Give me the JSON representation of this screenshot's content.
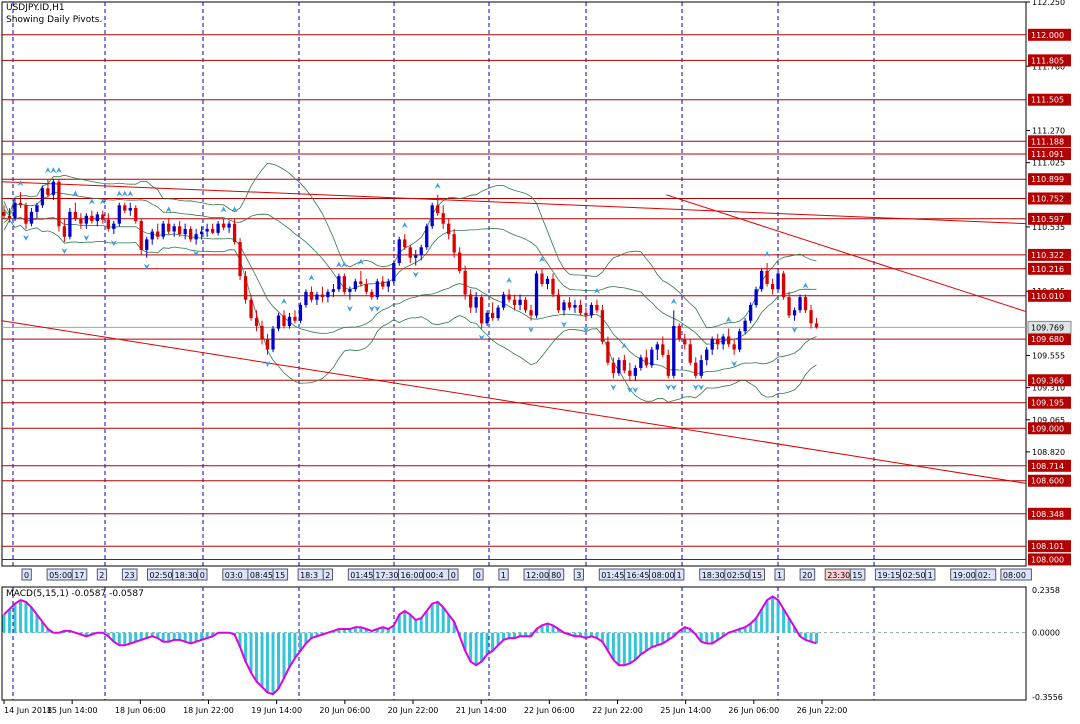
{
  "window": {
    "title": "USDJPY.ID,H1",
    "subtitle": "Showing Daily Pivots."
  },
  "macd": {
    "label": "MACD(5,15,1) -0.0587 -0.0587",
    "axis_ticks": [
      "0.2358",
      "0.0000",
      "-0.3556"
    ]
  },
  "colors": {
    "background": "#ffffff",
    "grid_vertical": "#0000cc",
    "pivot_line": "#b40000",
    "pivot_label_bg": "#b40000",
    "trendline": "#dd0000",
    "bollinger": "#2f7a4a",
    "candle_up": "#0000cc",
    "candle_down": "#dd0000",
    "fractal": "#3aa0e0",
    "macd_hist": "#34c6d8",
    "macd_signal": "#e000e0",
    "time_marker_bg": "#dde4ff",
    "current_marker_bg": "#ffd0d0"
  },
  "chart_data": {
    "type": "candlestick",
    "symbol": "USDJPY.ID",
    "timeframe": "H1",
    "ylim": [
      107.95,
      112.25
    ],
    "price_ticks": [
      "112.250",
      "111.760",
      "111.270",
      "111.025",
      "110.535",
      "110.045",
      "109.555",
      "109.310",
      "109.065",
      "108.820"
    ],
    "pivots": [
      {
        "price": 112.0,
        "label": "112.000"
      },
      {
        "price": 111.805,
        "label": "111.805"
      },
      {
        "price": 111.505,
        "label": "111.505"
      },
      {
        "price": 111.188,
        "label": "111.188"
      },
      {
        "price": 111.091,
        "label": "111.091"
      },
      {
        "price": 110.899,
        "label": "110.899"
      },
      {
        "price": 110.752,
        "label": "110.752"
      },
      {
        "price": 110.597,
        "label": "110.597"
      },
      {
        "price": 110.322,
        "label": "110.322"
      },
      {
        "price": 110.216,
        "label": "110.216"
      },
      {
        "price": 110.01,
        "label": "110.010"
      },
      {
        "price": 109.68,
        "label": "109.680"
      },
      {
        "price": 109.366,
        "label": "109.366"
      },
      {
        "price": 109.195,
        "label": "109.195"
      },
      {
        "price": 109.0,
        "label": "109.000"
      },
      {
        "price": 108.714,
        "label": "108.714"
      },
      {
        "price": 108.6,
        "label": "108.600"
      },
      {
        "price": 108.348,
        "label": "108.348"
      },
      {
        "price": 108.101,
        "label": "108.101"
      },
      {
        "price": 108.0,
        "label": "108.000"
      }
    ],
    "current_price": {
      "price": 109.769,
      "label": "109.769"
    },
    "date_labels": [
      "14 Jun 2018",
      "15 Jun 14:00",
      "18 Jun 06:00",
      "18 Jun 22:00",
      "19 Jun 14:00",
      "20 Jun 06:00",
      "20 Jun 22:00",
      "21 Jun 14:00",
      "22 Jun 06:00",
      "22 Jun 22:00",
      "25 Jun 14:00",
      "26 Jun 06:00",
      "26 Jun 22:00"
    ],
    "time_markers": [
      {
        "label": "0"
      },
      {
        "label": "05:00"
      },
      {
        "label": "17"
      },
      {
        "label": "2"
      },
      {
        "label": "23"
      },
      {
        "label": "02:50"
      },
      {
        "label": "18:30"
      },
      {
        "label": "0"
      },
      {
        "label": "03:0"
      },
      {
        "label": "08:45"
      },
      {
        "label": "15"
      },
      {
        "label": "18:3"
      },
      {
        "label": "2"
      },
      {
        "label": "01:45"
      },
      {
        "label": "17:30"
      },
      {
        "label": "16:00"
      },
      {
        "label": "00:4"
      },
      {
        "label": "0"
      },
      {
        "label": "0"
      },
      {
        "label": "1"
      },
      {
        "label": "12:00"
      },
      {
        "label": "80"
      },
      {
        "label": "3"
      },
      {
        "label": "01:45"
      },
      {
        "label": "16:45"
      },
      {
        "label": "08:00"
      },
      {
        "label": "1"
      },
      {
        "label": "18:30"
      },
      {
        "label": "02:50"
      },
      {
        "label": "15"
      },
      {
        "label": "1"
      },
      {
        "label": "20"
      },
      {
        "label": "23:30"
      },
      {
        "label": "15"
      },
      {
        "label": "19:15"
      },
      {
        "label": "02:50"
      },
      {
        "label": "1"
      },
      {
        "label": "19:00"
      },
      {
        "label": "02:"
      },
      {
        "label": "08:00"
      }
    ],
    "candles": [
      [
        110.65,
        110.7,
        110.6,
        110.62
      ],
      [
        110.62,
        110.68,
        110.57,
        110.6
      ],
      [
        110.6,
        110.75,
        110.58,
        110.72
      ],
      [
        110.72,
        110.8,
        110.68,
        110.7
      ],
      [
        110.7,
        110.72,
        110.52,
        110.56
      ],
      [
        110.56,
        110.68,
        110.54,
        110.65
      ],
      [
        110.65,
        110.72,
        110.6,
        110.7
      ],
      [
        110.7,
        110.85,
        110.68,
        110.83
      ],
      [
        110.83,
        110.9,
        110.76,
        110.78
      ],
      [
        110.78,
        110.9,
        110.74,
        110.88
      ],
      [
        110.88,
        110.9,
        110.5,
        110.54
      ],
      [
        110.54,
        110.6,
        110.42,
        110.46
      ],
      [
        110.46,
        110.68,
        110.44,
        110.65
      ],
      [
        110.65,
        110.72,
        110.58,
        110.6
      ],
      [
        110.6,
        110.64,
        110.52,
        110.56
      ],
      [
        110.56,
        110.64,
        110.52,
        110.62
      ],
      [
        110.62,
        110.66,
        110.56,
        110.58
      ],
      [
        110.58,
        110.65,
        110.54,
        110.63
      ],
      [
        110.63,
        110.66,
        110.56,
        110.59
      ],
      [
        110.59,
        110.64,
        110.5,
        110.52
      ],
      [
        110.52,
        110.58,
        110.48,
        110.56
      ],
      [
        110.56,
        110.72,
        110.54,
        110.7
      ],
      [
        110.7,
        110.72,
        110.64,
        110.66
      ],
      [
        110.66,
        110.72,
        110.62,
        110.68
      ],
      [
        110.68,
        110.7,
        110.56,
        110.58
      ],
      [
        110.58,
        110.6,
        110.32,
        110.36
      ],
      [
        110.36,
        110.46,
        110.3,
        110.44
      ],
      [
        110.44,
        110.52,
        110.4,
        110.5
      ],
      [
        110.5,
        110.56,
        110.44,
        110.46
      ],
      [
        110.46,
        110.58,
        110.44,
        110.56
      ],
      [
        110.56,
        110.6,
        110.48,
        110.5
      ],
      [
        110.5,
        110.56,
        110.46,
        110.54
      ],
      [
        110.54,
        110.58,
        110.46,
        110.48
      ],
      [
        110.48,
        110.56,
        110.44,
        110.52
      ],
      [
        110.52,
        110.54,
        110.42,
        110.44
      ],
      [
        110.44,
        110.52,
        110.4,
        110.48
      ],
      [
        110.48,
        110.54,
        110.44,
        110.5
      ],
      [
        110.5,
        110.56,
        110.46,
        110.52
      ],
      [
        110.52,
        110.56,
        110.48,
        110.49
      ],
      [
        110.49,
        110.58,
        110.47,
        110.56
      ],
      [
        110.56,
        110.6,
        110.51,
        110.53
      ],
      [
        110.53,
        110.58,
        110.49,
        110.56
      ],
      [
        110.56,
        110.6,
        110.4,
        110.42
      ],
      [
        110.42,
        110.45,
        110.13,
        110.16
      ],
      [
        110.16,
        110.2,
        109.95,
        109.98
      ],
      [
        109.98,
        110.02,
        109.82,
        109.84
      ],
      [
        109.84,
        109.9,
        109.74,
        109.78
      ],
      [
        109.78,
        109.82,
        109.64,
        109.68
      ],
      [
        109.68,
        109.72,
        109.56,
        109.6
      ],
      [
        109.6,
        109.78,
        109.58,
        109.76
      ],
      [
        109.76,
        109.88,
        109.74,
        109.86
      ],
      [
        109.86,
        109.9,
        109.76,
        109.78
      ],
      [
        109.78,
        109.88,
        109.76,
        109.85
      ],
      [
        109.85,
        109.9,
        109.8,
        109.82
      ],
      [
        109.82,
        109.96,
        109.8,
        109.94
      ],
      [
        109.94,
        110.06,
        109.92,
        110.04
      ],
      [
        110.04,
        110.08,
        109.96,
        109.98
      ],
      [
        109.98,
        110.04,
        109.94,
        110.02
      ],
      [
        110.02,
        110.08,
        109.96,
        110.0
      ],
      [
        110.0,
        110.06,
        109.96,
        110.04
      ],
      [
        110.04,
        110.1,
        110.0,
        110.06
      ],
      [
        110.06,
        110.18,
        110.04,
        110.16
      ],
      [
        110.16,
        110.18,
        110.02,
        110.04
      ],
      [
        110.04,
        110.08,
        109.98,
        110.06
      ],
      [
        110.06,
        110.14,
        110.04,
        110.12
      ],
      [
        110.12,
        110.2,
        110.08,
        110.1
      ],
      [
        110.1,
        110.14,
        110.02,
        110.04
      ],
      [
        110.04,
        110.06,
        109.98,
        110.0
      ],
      [
        110.0,
        110.14,
        109.98,
        110.12
      ],
      [
        110.12,
        110.16,
        110.06,
        110.08
      ],
      [
        110.08,
        110.14,
        110.04,
        110.12
      ],
      [
        110.12,
        110.28,
        110.1,
        110.26
      ],
      [
        110.26,
        110.46,
        110.24,
        110.44
      ],
      [
        110.44,
        110.48,
        110.36,
        110.38
      ],
      [
        110.38,
        110.4,
        110.26,
        110.3
      ],
      [
        110.3,
        110.36,
        110.24,
        110.32
      ],
      [
        110.32,
        110.4,
        110.28,
        110.38
      ],
      [
        110.38,
        110.56,
        110.36,
        110.54
      ],
      [
        110.54,
        110.72,
        110.52,
        110.7
      ],
      [
        110.7,
        110.78,
        110.62,
        110.64
      ],
      [
        110.64,
        110.7,
        110.52,
        110.56
      ],
      [
        110.56,
        110.6,
        110.44,
        110.48
      ],
      [
        110.48,
        110.52,
        110.3,
        110.34
      ],
      [
        110.34,
        110.38,
        110.18,
        110.2
      ],
      [
        110.2,
        110.24,
        109.98,
        110.02
      ],
      [
        110.02,
        110.06,
        109.88,
        109.92
      ],
      [
        109.92,
        110.04,
        109.88,
        110.0
      ],
      [
        110.0,
        110.02,
        109.76,
        109.8
      ],
      [
        109.8,
        109.9,
        109.78,
        109.88
      ],
      [
        109.88,
        109.96,
        109.82,
        109.84
      ],
      [
        109.84,
        109.94,
        109.82,
        109.92
      ],
      [
        109.92,
        110.04,
        109.9,
        110.02
      ],
      [
        110.02,
        110.06,
        109.96,
        109.98
      ],
      [
        109.98,
        110.02,
        109.9,
        109.94
      ],
      [
        109.94,
        110.02,
        109.9,
        109.98
      ],
      [
        109.98,
        110.0,
        109.88,
        109.9
      ],
      [
        109.9,
        109.94,
        109.82,
        109.86
      ],
      [
        109.86,
        110.2,
        109.84,
        110.18
      ],
      [
        110.18,
        110.22,
        110.08,
        110.1
      ],
      [
        110.1,
        110.16,
        110.06,
        110.14
      ],
      [
        110.14,
        110.18,
        110.0,
        110.02
      ],
      [
        110.02,
        110.06,
        109.88,
        109.9
      ],
      [
        109.9,
        109.98,
        109.86,
        109.96
      ],
      [
        109.96,
        110.0,
        109.9,
        109.92
      ],
      [
        109.92,
        109.98,
        109.88,
        109.94
      ],
      [
        109.94,
        109.98,
        109.86,
        109.88
      ],
      [
        109.88,
        109.92,
        109.82,
        109.86
      ],
      [
        109.86,
        109.96,
        109.84,
        109.94
      ],
      [
        109.94,
        109.98,
        109.88,
        109.9
      ],
      [
        109.9,
        109.94,
        109.64,
        109.66
      ],
      [
        109.66,
        109.7,
        109.48,
        109.5
      ],
      [
        109.5,
        109.54,
        109.38,
        109.42
      ],
      [
        109.42,
        109.54,
        109.4,
        109.52
      ],
      [
        109.52,
        109.56,
        109.42,
        109.44
      ],
      [
        109.44,
        109.5,
        109.36,
        109.4
      ],
      [
        109.4,
        109.48,
        109.36,
        109.46
      ],
      [
        109.46,
        109.56,
        109.44,
        109.54
      ],
      [
        109.54,
        109.6,
        109.46,
        109.48
      ],
      [
        109.48,
        109.62,
        109.46,
        109.6
      ],
      [
        109.6,
        109.66,
        109.52,
        109.64
      ],
      [
        109.64,
        109.7,
        109.54,
        109.56
      ],
      [
        109.56,
        109.6,
        109.38,
        109.4
      ],
      [
        109.4,
        109.9,
        109.38,
        109.78
      ],
      [
        109.78,
        109.8,
        109.66,
        109.68
      ],
      [
        109.68,
        109.72,
        109.6,
        109.64
      ],
      [
        109.64,
        109.68,
        109.48,
        109.5
      ],
      [
        109.5,
        109.54,
        109.38,
        109.4
      ],
      [
        109.4,
        109.56,
        109.38,
        109.52
      ],
      [
        109.52,
        109.62,
        109.48,
        109.6
      ],
      [
        109.6,
        109.7,
        109.56,
        109.68
      ],
      [
        109.68,
        109.72,
        109.6,
        109.64
      ],
      [
        109.64,
        109.72,
        109.6,
        109.7
      ],
      [
        109.7,
        109.76,
        109.62,
        109.64
      ],
      [
        109.64,
        109.68,
        109.56,
        109.6
      ],
      [
        109.6,
        109.76,
        109.58,
        109.74
      ],
      [
        109.74,
        109.84,
        109.72,
        109.82
      ],
      [
        109.82,
        109.96,
        109.8,
        109.94
      ],
      [
        109.94,
        110.08,
        109.92,
        110.06
      ],
      [
        110.06,
        110.22,
        110.04,
        110.2
      ],
      [
        110.2,
        110.26,
        110.08,
        110.1
      ],
      [
        110.1,
        110.14,
        110.02,
        110.06
      ],
      [
        110.06,
        110.22,
        110.04,
        110.18
      ],
      [
        110.18,
        110.2,
        109.98,
        110.0
      ],
      [
        110.0,
        110.04,
        109.84,
        109.86
      ],
      [
        109.86,
        109.92,
        109.82,
        109.9
      ],
      [
        109.9,
        110.02,
        109.88,
        110.0
      ],
      [
        110.0,
        110.02,
        109.88,
        109.9
      ],
      [
        109.9,
        109.94,
        109.76,
        109.8
      ],
      [
        109.8,
        109.84,
        109.76,
        109.769
      ]
    ],
    "trendlines": [
      {
        "x1": 0,
        "y1": 110.88,
        "x2": 148,
        "y2": 110.56
      },
      {
        "x1": 96,
        "y1": 110.78,
        "x2": 148,
        "y2": 109.89
      },
      {
        "x1": 0,
        "y1": 109.82,
        "x2": 148,
        "y2": 108.58
      }
    ],
    "macd_ylim": [
      -0.3556,
      0.2358
    ],
    "macd_values": [
      0.1,
      0.13,
      0.16,
      0.18,
      0.17,
      0.14,
      0.1,
      0.06,
      0.02,
      0.0,
      0.0,
      0.01,
      0.01,
      0.0,
      -0.01,
      -0.02,
      -0.01,
      0.0,
      0.0,
      -0.02,
      -0.05,
      -0.07,
      -0.07,
      -0.06,
      -0.05,
      -0.04,
      -0.03,
      -0.02,
      -0.03,
      -0.05,
      -0.05,
      -0.04,
      -0.04,
      -0.05,
      -0.06,
      -0.05,
      -0.04,
      -0.03,
      -0.02,
      0.0,
      0.0,
      0.0,
      -0.01,
      -0.08,
      -0.16,
      -0.22,
      -0.27,
      -0.3,
      -0.33,
      -0.34,
      -0.31,
      -0.25,
      -0.19,
      -0.14,
      -0.1,
      -0.06,
      -0.03,
      -0.02,
      -0.01,
      0.0,
      0.01,
      0.02,
      0.02,
      0.02,
      0.03,
      0.03,
      0.02,
      0.01,
      0.02,
      0.03,
      0.02,
      0.04,
      0.1,
      0.12,
      0.1,
      0.07,
      0.08,
      0.12,
      0.16,
      0.17,
      0.14,
      0.1,
      0.06,
      -0.02,
      -0.1,
      -0.16,
      -0.18,
      -0.16,
      -0.12,
      -0.1,
      -0.07,
      -0.04,
      -0.03,
      -0.03,
      -0.02,
      -0.02,
      -0.02,
      0.02,
      0.04,
      0.05,
      0.04,
      0.02,
      0.0,
      -0.01,
      -0.02,
      -0.02,
      -0.03,
      -0.02,
      -0.03,
      -0.05,
      -0.1,
      -0.15,
      -0.18,
      -0.18,
      -0.17,
      -0.15,
      -0.12,
      -0.1,
      -0.08,
      -0.07,
      -0.06,
      -0.04,
      -0.02,
      0.01,
      0.03,
      0.02,
      -0.01,
      -0.05,
      -0.06,
      -0.06,
      -0.04,
      -0.02,
      0.0,
      0.01,
      0.02,
      0.03,
      0.05,
      0.08,
      0.13,
      0.18,
      0.2,
      0.18,
      0.13,
      0.08,
      0.03,
      -0.02,
      -0.04,
      -0.05,
      -0.0587
    ]
  }
}
